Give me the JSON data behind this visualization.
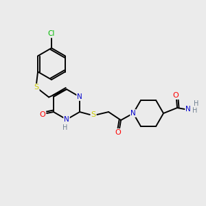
{
  "bg_color": "#ebebeb",
  "atom_colors": {
    "C": "#000000",
    "N": "#0000cc",
    "O": "#ff0000",
    "S": "#cccc00",
    "Cl": "#00bb00",
    "H": "#708090"
  },
  "bond_color": "#000000",
  "figsize": [
    3.0,
    3.0
  ],
  "dpi": 100
}
